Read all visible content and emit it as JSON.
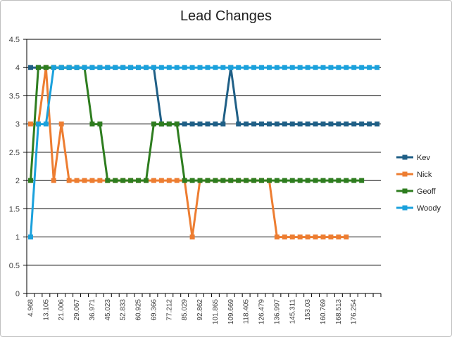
{
  "chart_data": {
    "type": "line",
    "title": "Lead Changes",
    "xlabel": "",
    "ylabel": "",
    "ylim": [
      0,
      4.5
    ],
    "yticks": [
      "0",
      "0.5",
      "1",
      "1.5",
      "2",
      "2.5",
      "3",
      "3.5",
      "4",
      "4.5"
    ],
    "grid": true,
    "legend_position": "right",
    "x_tick_labels": [
      "4.968",
      "13.105",
      "21.006",
      "29.067",
      "36.971",
      "45.023",
      "52.833",
      "60.925",
      "69.366",
      "77.212",
      "85.029",
      "92.862",
      "101.865",
      "109.669",
      "118.405",
      "126.479",
      "136.997",
      "145.311",
      "153.03",
      "160.769",
      "168.513",
      "176.254"
    ],
    "point_count": 46,
    "series": [
      {
        "name": "Kev",
        "color": "#1f5f86",
        "values": [
          4,
          4,
          4,
          4,
          4,
          4,
          4,
          4,
          4,
          4,
          4,
          4,
          4,
          4,
          4,
          4,
          4,
          3,
          3,
          3,
          3,
          3,
          3,
          3,
          3,
          3,
          4,
          3,
          3,
          3,
          3,
          3,
          3,
          3,
          3,
          3,
          3,
          3,
          3,
          3,
          3,
          3,
          3,
          3,
          3,
          3
        ]
      },
      {
        "name": "Nick",
        "color": "#ed7d31",
        "values": [
          3,
          3,
          4,
          2,
          3,
          2,
          2,
          2,
          2,
          2,
          2,
          2,
          2,
          2,
          2,
          2,
          2,
          2,
          2,
          2,
          2,
          1,
          2,
          2,
          2,
          2,
          2,
          2,
          2,
          2,
          2,
          2,
          1,
          1,
          1,
          1,
          1,
          1,
          1,
          1,
          1,
          1
        ]
      },
      {
        "name": "Geoff",
        "color": "#2e7d1f",
        "values": [
          2,
          4,
          4,
          4,
          4,
          4,
          4,
          4,
          3,
          3,
          2,
          2,
          2,
          2,
          2,
          2,
          3,
          3,
          3,
          3,
          2,
          2,
          2,
          2,
          2,
          2,
          2,
          2,
          2,
          2,
          2,
          2,
          2,
          2,
          2,
          2,
          2,
          2,
          2,
          2,
          2,
          2,
          2,
          2
        ]
      },
      {
        "name": "Woody",
        "color": "#1ba1dc",
        "values": [
          1,
          3,
          3,
          4,
          4,
          4,
          4,
          4,
          4,
          4,
          4,
          4,
          4,
          4,
          4,
          4,
          4,
          4,
          4,
          4,
          4,
          4,
          4,
          4,
          4,
          4,
          4,
          4,
          4,
          4,
          4,
          4,
          4,
          4,
          4,
          4,
          4,
          4,
          4,
          4,
          4,
          4,
          4,
          4,
          4,
          4
        ]
      }
    ]
  }
}
